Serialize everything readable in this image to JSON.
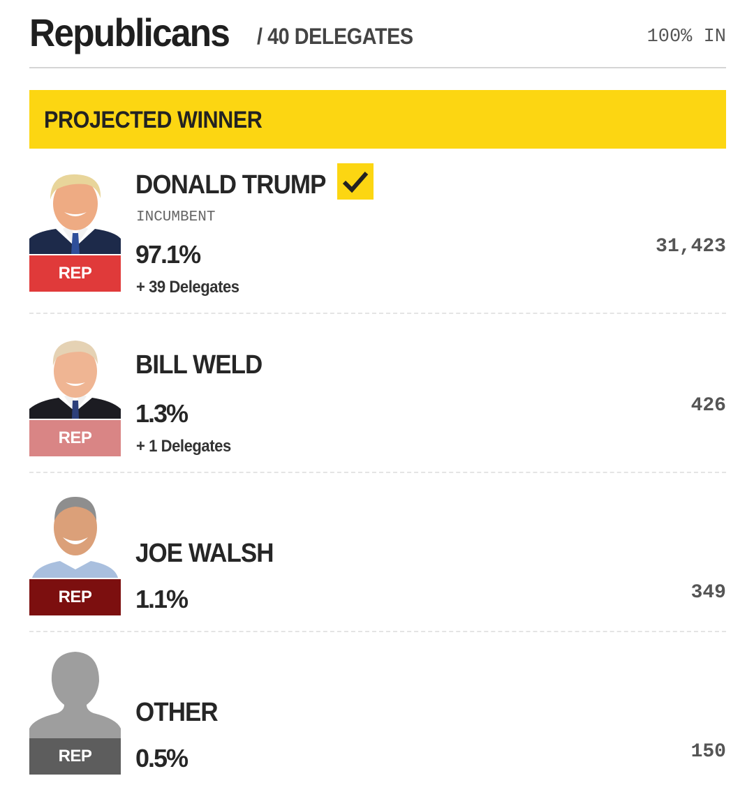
{
  "header": {
    "party": "Republicans",
    "delegates": "/ 40 DELEGATES",
    "reporting": "100% IN"
  },
  "banner": {
    "label": "PROJECTED WINNER"
  },
  "colors": {
    "banner": "#fcd612",
    "rep_winner": "#e03a3a",
    "rep_second": "#d98585",
    "rep_third": "#7c0f0f",
    "rep_other": "#5d5d5d"
  },
  "candidates": [
    {
      "name": "DONALD TRUMP",
      "status": "INCUMBENT",
      "party": "REP",
      "pct": "97.1%",
      "delegates": "+ 39 Delegates",
      "votes": "31,423",
      "winner_icon": "check-icon"
    },
    {
      "name": "BILL WELD",
      "party": "REP",
      "pct": "1.3%",
      "delegates": "+ 1 Delegates",
      "votes": "426"
    },
    {
      "name": "JOE WALSH",
      "party": "REP",
      "pct": "1.1%",
      "votes": "349"
    },
    {
      "name": "OTHER",
      "party": "REP",
      "pct": "0.5%",
      "votes": "150",
      "photo_icon": "person-silhouette-icon"
    }
  ]
}
